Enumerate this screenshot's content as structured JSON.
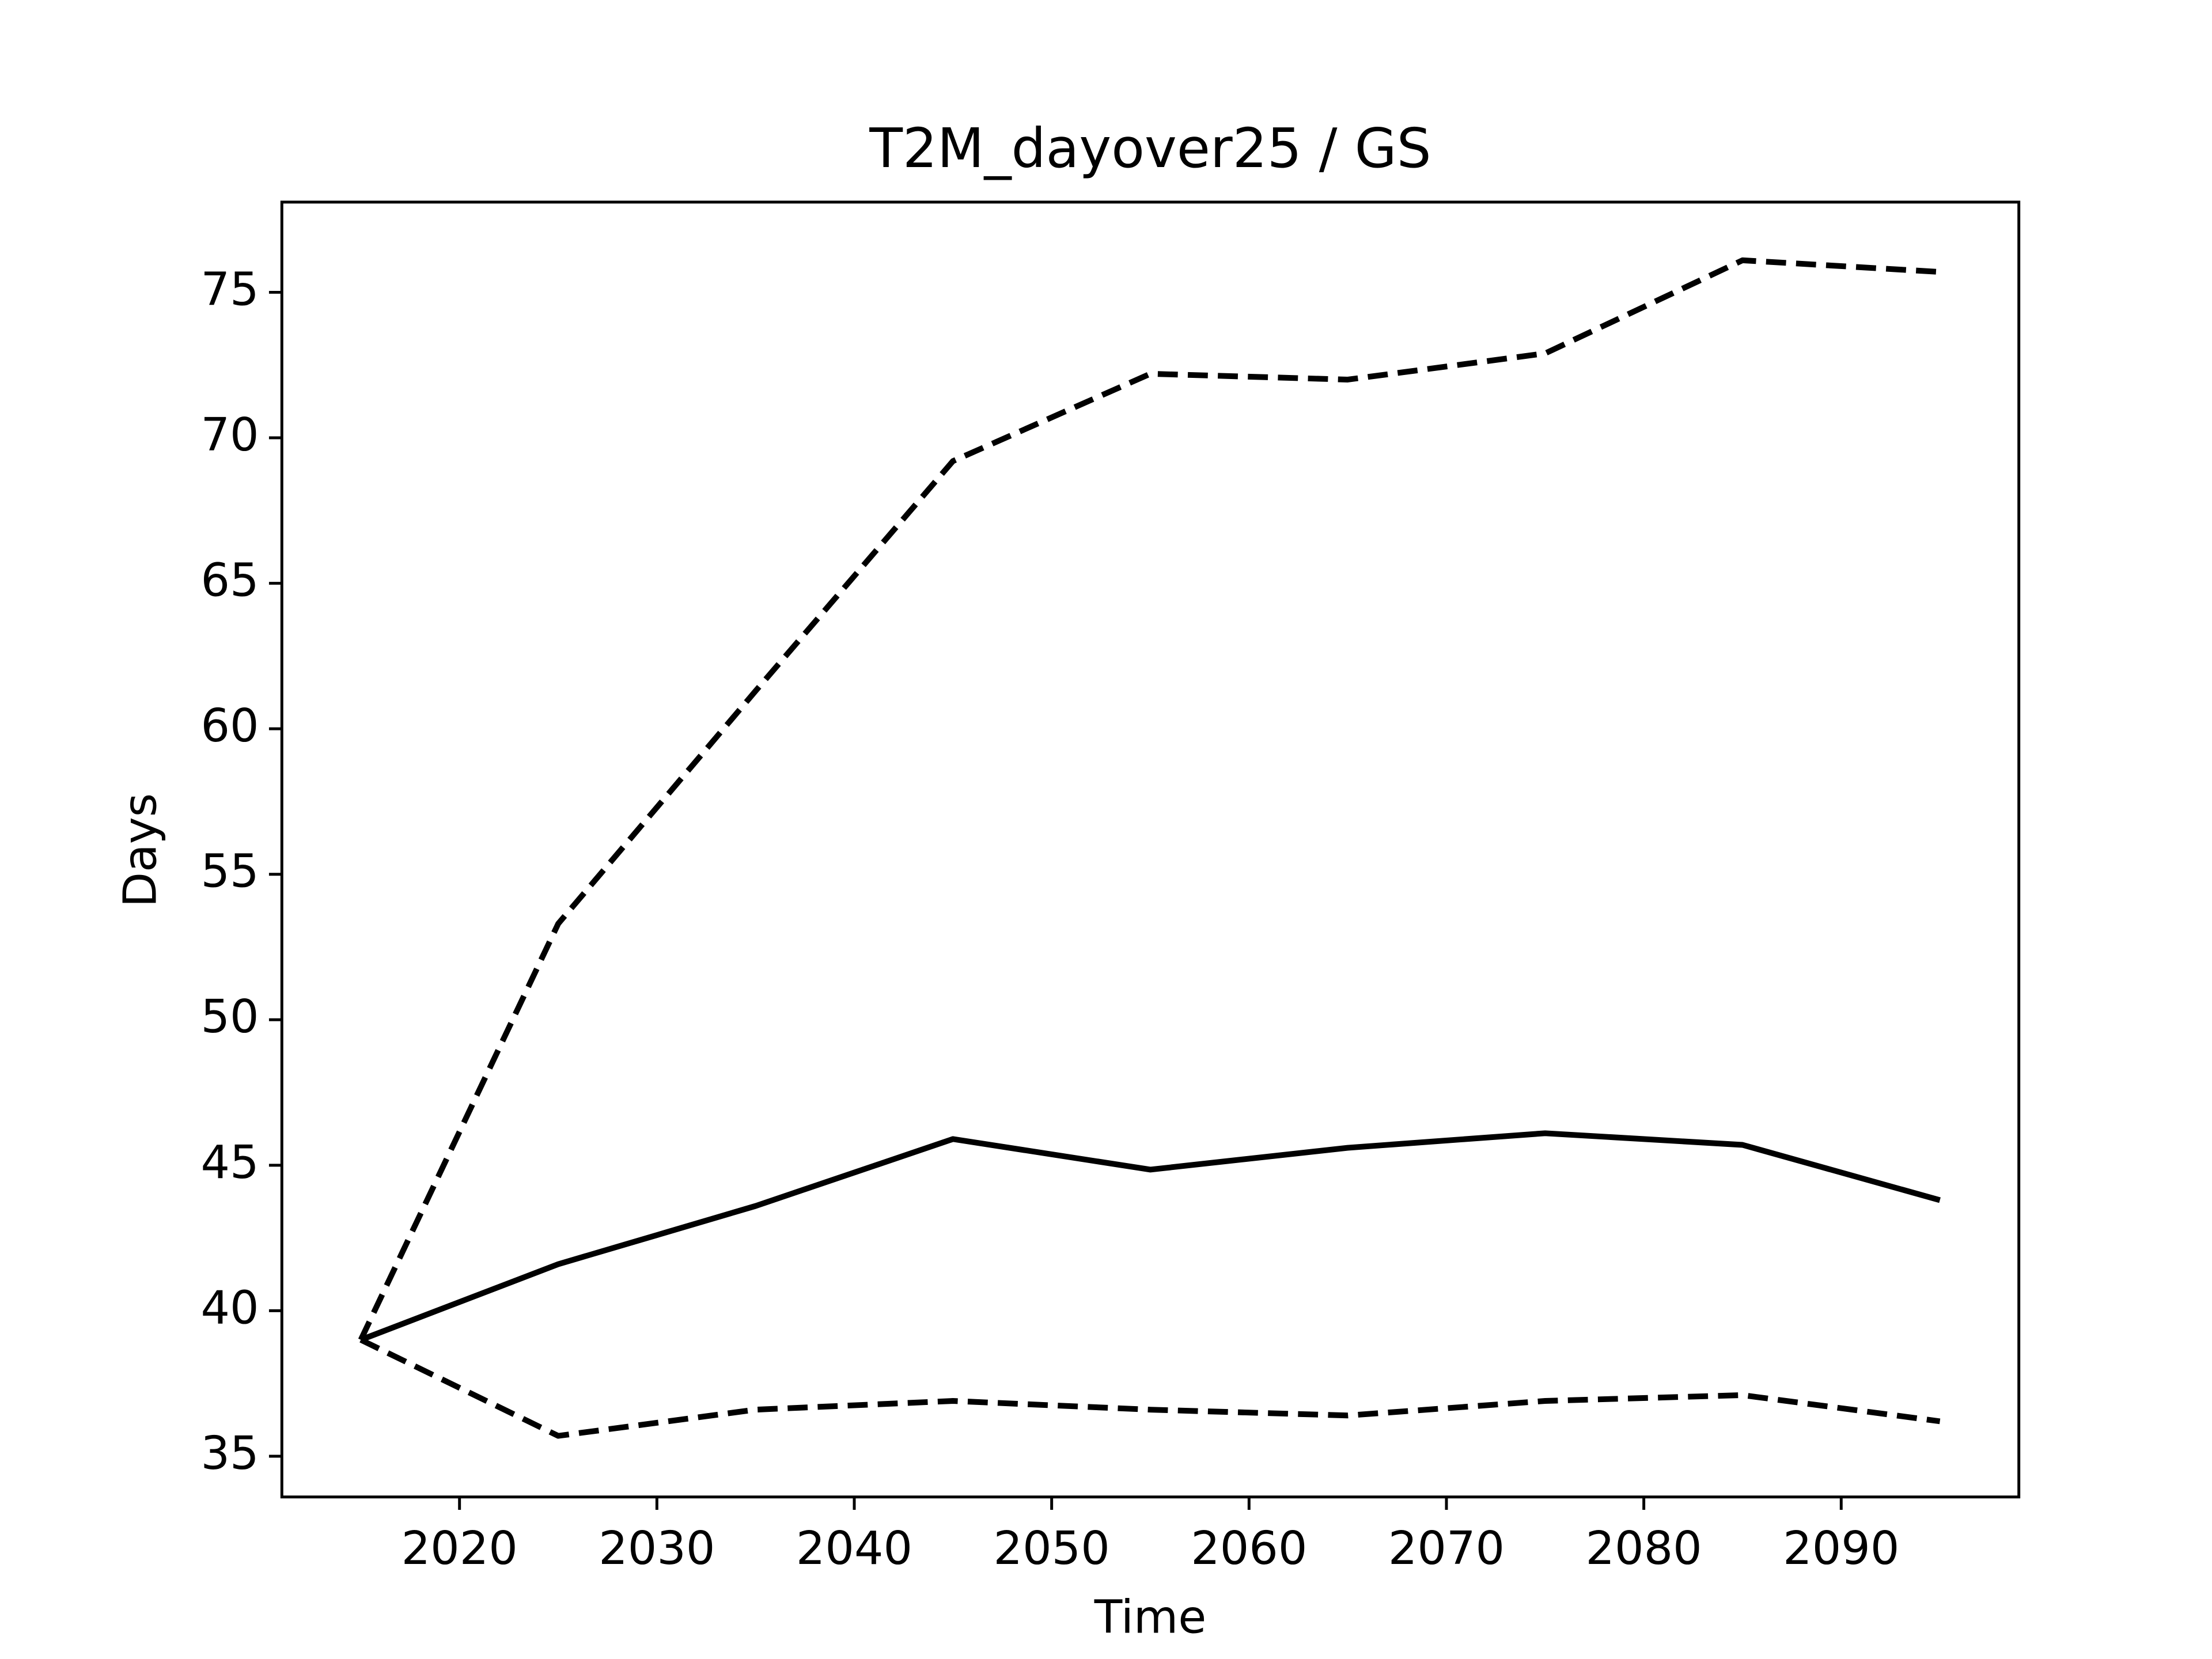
{
  "chart_data": {
    "type": "line",
    "title": "T2M_dayover25 / GS",
    "xlabel": "Time",
    "ylabel": "Days",
    "x": [
      2015,
      2025,
      2035,
      2045,
      2055,
      2065,
      2075,
      2085,
      2095
    ],
    "series": [
      {
        "color": "#000000",
        "linestyle": "solid",
        "values": [
          39.0,
          41.6,
          43.6,
          45.9,
          44.85,
          45.6,
          46.1,
          45.7,
          43.8
        ]
      },
      {
        "color": "#000000",
        "linestyle": "dashed",
        "values": [
          39.0,
          53.3,
          61.3,
          69.2,
          72.2,
          72.0,
          72.9,
          76.1,
          75.7
        ]
      },
      {
        "color": "#000000",
        "linestyle": "dashed",
        "values": [
          39.0,
          35.7,
          36.6,
          36.9,
          36.6,
          36.4,
          36.9,
          37.1,
          36.2
        ]
      }
    ],
    "xlim": [
      2011,
      2099
    ],
    "xticks": [
      2020,
      2030,
      2040,
      2050,
      2060,
      2070,
      2080,
      2090
    ],
    "ylim": [
      33.6,
      78.1
    ],
    "yticks": [
      35,
      40,
      45,
      50,
      55,
      60,
      65,
      70,
      75
    ],
    "grid": false
  }
}
